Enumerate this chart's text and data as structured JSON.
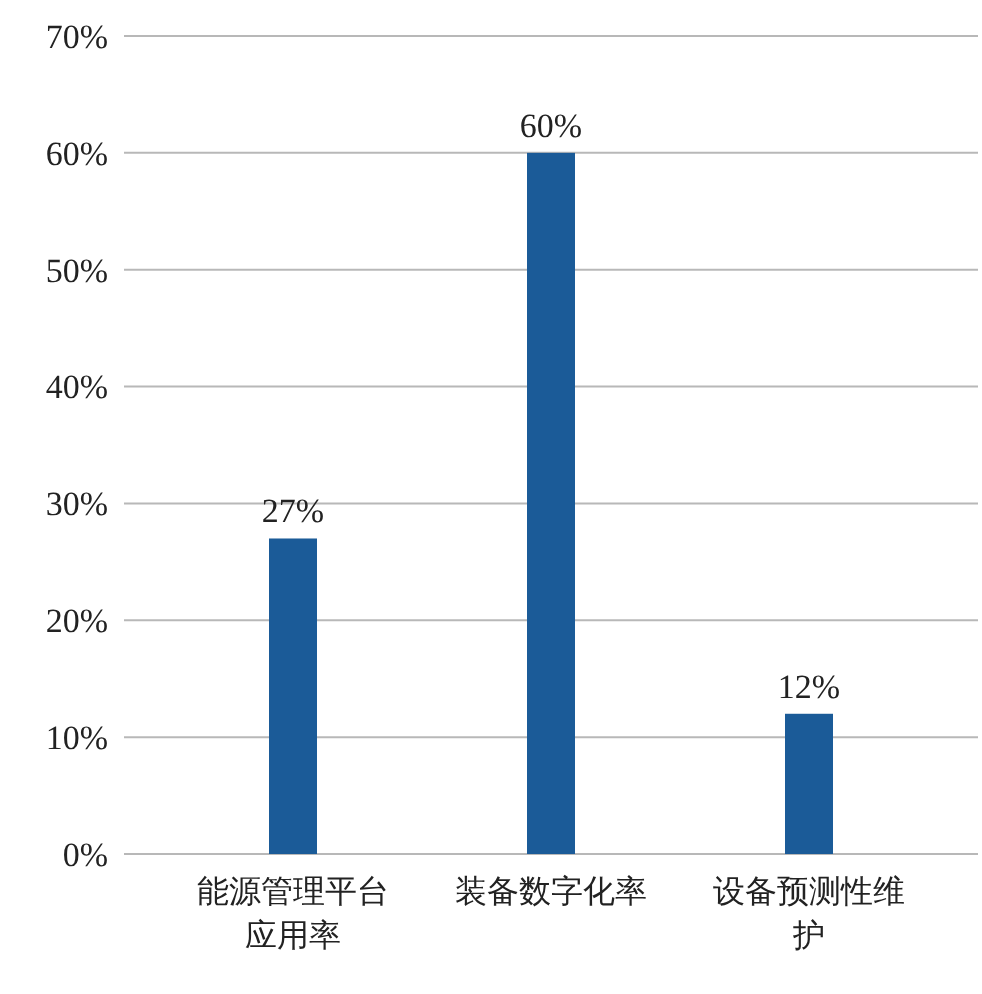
{
  "chart_data": {
    "type": "bar",
    "categories": [
      "能源管理平台应用率",
      "装备数字化率",
      "设备预测性维护"
    ],
    "values": [
      27,
      60,
      12
    ],
    "color": "#1b5b98",
    "value_labels": [
      "27%",
      "60%",
      "12%"
    ],
    "ylim": [
      0,
      70
    ],
    "yticks": [
      {
        "value": 0,
        "label": "0%"
      },
      {
        "value": 10,
        "label": "10%"
      },
      {
        "value": 20,
        "label": "20%"
      },
      {
        "value": 30,
        "label": "30%"
      },
      {
        "value": 40,
        "label": "40%"
      },
      {
        "value": 50,
        "label": "50%"
      },
      {
        "value": 60,
        "label": "60%"
      },
      {
        "value": 70,
        "label": "70%"
      }
    ],
    "grid": "y"
  }
}
